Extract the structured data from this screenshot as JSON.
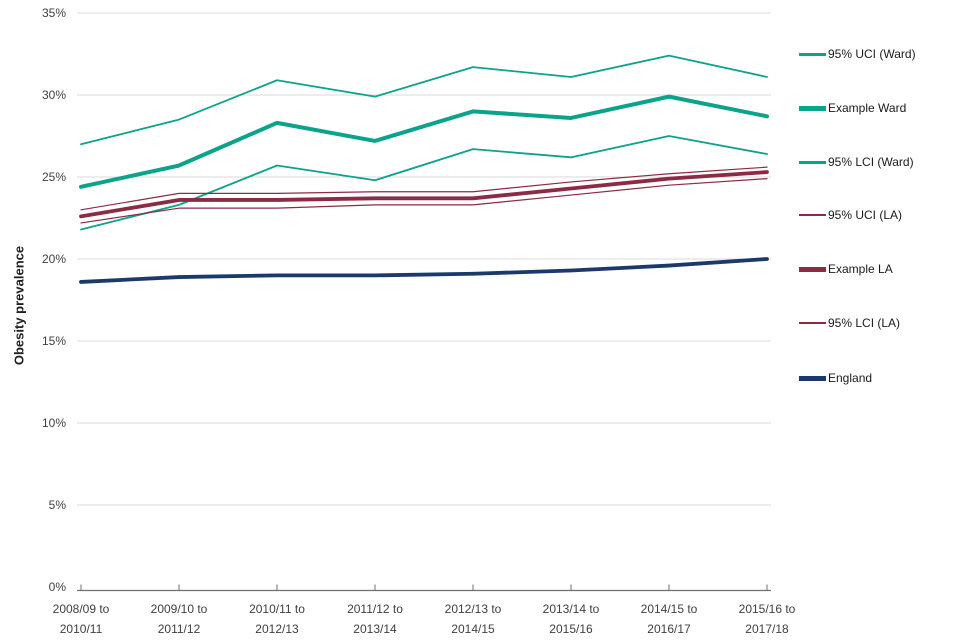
{
  "y_axis": {
    "title": "Obesity prevalence",
    "tick_labels": [
      "35%",
      "30%",
      "25%",
      "20%",
      "15%",
      "10%",
      "5%",
      "0%"
    ]
  },
  "x_axis": {
    "labels": [
      {
        "line1": "2008/09 to",
        "line2": "2010/11"
      },
      {
        "line1": "2009/10 to",
        "line2": "2011/12"
      },
      {
        "line1": "2010/11 to",
        "line2": "2012/13"
      },
      {
        "line1": "2011/12 to",
        "line2": "2013/14"
      },
      {
        "line1": "2012/13 to",
        "line2": "2014/15"
      },
      {
        "line1": "2013/14 to",
        "line2": "2015/16"
      },
      {
        "line1": "2014/15 to",
        "line2": "2016/17"
      },
      {
        "line1": "2015/16 to",
        "line2": "2017/18"
      }
    ]
  },
  "colors": {
    "ward_teal": "#0ca38b",
    "la_red": "#8b2c44",
    "england_navy": "#1b3a6b",
    "gridline": "#d9d9d9",
    "axis": "#707070"
  },
  "chart_data": {
    "type": "line",
    "title": "",
    "xlabel": "",
    "ylabel": "Obesity prevalence",
    "ylim": [
      0,
      35
    ],
    "ytick_step": 5,
    "grid": true,
    "legend_position": "right",
    "categories": [
      "2008/09 to 2010/11",
      "2009/10 to 2011/12",
      "2010/11 to 2012/13",
      "2011/12 to 2013/14",
      "2012/13 to 2014/15",
      "2013/14 to 2015/16",
      "2014/15 to 2016/17",
      "2015/16 to 2017/18"
    ],
    "series": [
      {
        "name": "95% UCI (Ward)",
        "color": "#0ca38b",
        "width": 1.8,
        "values": [
          27.0,
          28.5,
          30.9,
          29.9,
          31.7,
          31.1,
          32.4,
          31.1
        ]
      },
      {
        "name": "Example Ward",
        "color": "#0ca38b",
        "width": 4,
        "values": [
          24.4,
          25.7,
          28.3,
          27.2,
          29.0,
          28.6,
          29.9,
          28.7
        ]
      },
      {
        "name": "95% LCI (Ward)",
        "color": "#0ca38b",
        "width": 1.8,
        "values": [
          21.8,
          23.3,
          25.7,
          24.8,
          26.7,
          26.2,
          27.5,
          26.4
        ]
      },
      {
        "name": "95% UCI (LA)",
        "color": "#8b2c44",
        "width": 1.2,
        "values": [
          23.0,
          24.0,
          24.0,
          24.1,
          24.1,
          24.7,
          25.2,
          25.6
        ]
      },
      {
        "name": "Example LA",
        "color": "#8b2c44",
        "width": 3.8,
        "values": [
          22.6,
          23.6,
          23.6,
          23.7,
          23.7,
          24.3,
          24.9,
          25.3
        ]
      },
      {
        "name": "95% LCI (LA)",
        "color": "#8b2c44",
        "width": 1.2,
        "values": [
          22.2,
          23.1,
          23.1,
          23.3,
          23.3,
          23.9,
          24.5,
          24.9
        ]
      },
      {
        "name": "England",
        "color": "#1b3a6b",
        "width": 3.8,
        "values": [
          18.6,
          18.9,
          19.0,
          19.0,
          19.1,
          19.3,
          19.6,
          20.0
        ]
      }
    ]
  }
}
